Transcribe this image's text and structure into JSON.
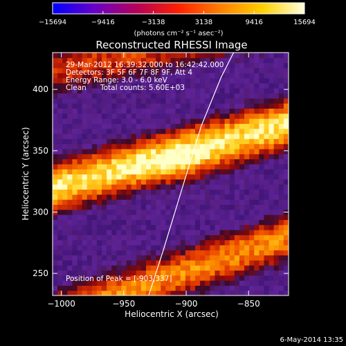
{
  "chart_data": {
    "type": "heatmap",
    "title": "Reconstructed RHESSI Image",
    "xlabel": "Heliocentric X (arcsec)",
    "ylabel": "Heliocentric Y (arcsec)",
    "xlim": [
      -1007,
      -818
    ],
    "ylim": [
      232,
      430
    ],
    "x_ticks": [
      -1000,
      -950,
      -900,
      -850
    ],
    "y_ticks": [
      250,
      300,
      350,
      400
    ],
    "colorbar": {
      "min": -15694,
      "max": 15694,
      "ticks": [
        -15694,
        -9416,
        -3138,
        3138,
        9416,
        15694
      ],
      "unit_label": "(photons cm⁻² s⁻¹ asec⁻²)",
      "colors": [
        "#0000ff",
        "#6a00c8",
        "#b5005a",
        "#ff2000",
        "#ff8000",
        "#ffd000",
        "#ffffe0"
      ]
    },
    "annotations": [
      "29-Mar-2012 16:39:32.000 to 16:42:42.000",
      "Detectors: 3F 5F 6F 7F 8F 9F, Att 4",
      "Energy Range: 3.0 - 6.0 keV",
      "Clean",
      "Total counts: 5.60E+03"
    ],
    "peak_label": "Position of Peak = [-903,337]",
    "peak": [
      -903,
      337
    ],
    "limb_curve": [
      [
        -930,
        232
      ],
      [
        -918,
        270
      ],
      [
        -903,
        320
      ],
      [
        -888,
        370
      ],
      [
        -872,
        410
      ],
      [
        -862,
        430
      ]
    ],
    "bands": [
      {
        "x": [
          -1007,
          -818
        ],
        "y_center": [
          415,
          455
        ],
        "intensity": 0.6
      },
      {
        "x": [
          -1007,
          -818
        ],
        "y_center": [
          320,
          372
        ],
        "intensity": 0.95
      },
      {
        "x": [
          -1007,
          -818
        ],
        "y_center": [
          215,
          280
        ],
        "intensity": 0.75
      }
    ]
  },
  "footer": {
    "timestamp": "6-May-2014 13:35"
  }
}
